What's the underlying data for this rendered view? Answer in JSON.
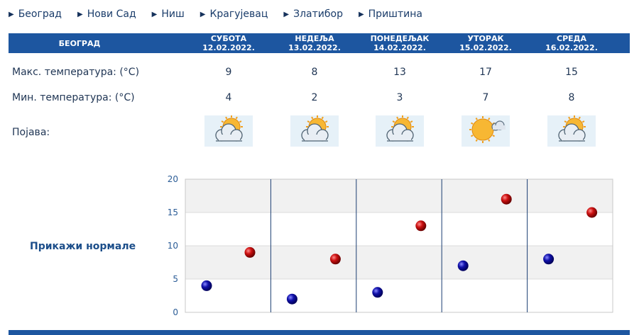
{
  "nav": [
    "Београд",
    "Нови Сад",
    "Ниш",
    "Крагујевац",
    "Златибор",
    "Приштина"
  ],
  "table": {
    "city": "БЕОГРАД",
    "days": [
      {
        "name": "СУБОТА",
        "date": "12.02.2022.",
        "max": "9",
        "min": "4",
        "icon": "partly-cloudy-icon"
      },
      {
        "name": "НЕДЕЉА",
        "date": "13.02.2022.",
        "max": "8",
        "min": "2",
        "icon": "partly-cloudy-icon"
      },
      {
        "name": "ПОНЕДЕЉАК",
        "date": "14.02.2022.",
        "max": "13",
        "min": "3",
        "icon": "partly-cloudy-icon"
      },
      {
        "name": "УТОРАК",
        "date": "15.02.2022.",
        "max": "17",
        "min": "7",
        "icon": "mostly-sunny-icon"
      },
      {
        "name": "СРЕДА",
        "date": "16.02.2022.",
        "max": "15",
        "min": "8",
        "icon": "partly-cloudy-icon"
      }
    ],
    "max_label": "Макс. температура: (°C)",
    "min_label": "Мин. температура: (°C)",
    "phenomenon_label": "Појава:"
  },
  "normals_label": "Прикажи нормале",
  "colors": {
    "header": "#1d56a0",
    "max_dot": "#cc1111",
    "min_dot": "#1111aa"
  },
  "chart_data": {
    "type": "scatter",
    "ylim": [
      0,
      20
    ],
    "yticks": [
      "0",
      "5",
      "10",
      "15",
      "20"
    ],
    "grid": true,
    "series": [
      {
        "values": [
          9,
          8,
          13,
          17,
          15
        ]
      },
      {
        "values": [
          4,
          2,
          3,
          7,
          8
        ]
      }
    ]
  }
}
